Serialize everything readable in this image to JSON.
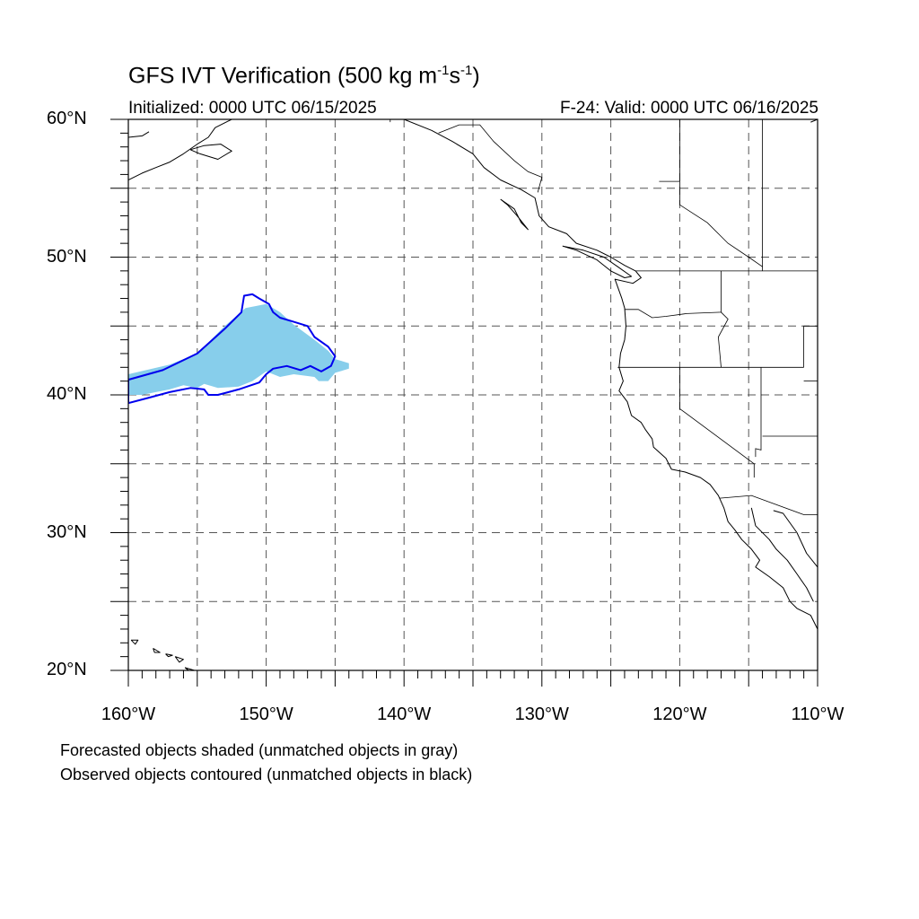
{
  "title_main": "GFS IVT Verification (500 kg m",
  "title_sup1": "-1",
  "title_mid": "s",
  "title_sup2": "-1",
  "title_end": ")",
  "initialized": "Initialized: 0000 UTC 06/15/2025",
  "valid": "F-24: Valid: 0000 UTC 06/16/2025",
  "map": {
    "lon_range": [
      -160,
      -110
    ],
    "lat_range": [
      20,
      60
    ],
    "grid_lon_step": 5,
    "grid_lat_step": 5,
    "lat_labels": [
      {
        "lat": 60,
        "text": "60°N"
      },
      {
        "lat": 50,
        "text": "50°N"
      },
      {
        "lat": 40,
        "text": "40°N"
      },
      {
        "lat": 30,
        "text": "30°N"
      },
      {
        "lat": 20,
        "text": "20°N"
      }
    ],
    "lon_labels": [
      {
        "lon": -160,
        "text": "160°W"
      },
      {
        "lon": -150,
        "text": "150°W"
      },
      {
        "lon": -140,
        "text": "140°W"
      },
      {
        "lon": -130,
        "text": "130°W"
      },
      {
        "lon": -120,
        "text": "120°W"
      },
      {
        "lon": -110,
        "text": "110°W"
      }
    ],
    "forecast_color": "#87ceeb",
    "observed_color": "#0000ee",
    "forecast_object": [
      [
        -160,
        41.5
      ],
      [
        -157,
        42.2
      ],
      [
        -155,
        43
      ],
      [
        -153,
        45
      ],
      [
        -151.5,
        46.3
      ],
      [
        -150,
        46.6
      ],
      [
        -149,
        46
      ],
      [
        -148,
        45.1
      ],
      [
        -146.5,
        44
      ],
      [
        -145.5,
        43.2
      ],
      [
        -145,
        42.6
      ],
      [
        -144,
        42.3
      ],
      [
        -144,
        41.9
      ],
      [
        -145,
        41.6
      ],
      [
        -145.5,
        41
      ],
      [
        -146.2,
        41
      ],
      [
        -146.5,
        41.3
      ],
      [
        -148,
        41.5
      ],
      [
        -149,
        41.3
      ],
      [
        -150,
        41.7
      ],
      [
        -151,
        41
      ],
      [
        -152,
        40.6
      ],
      [
        -153.5,
        40.5
      ],
      [
        -154.5,
        40.8
      ],
      [
        -155,
        40.5
      ],
      [
        -156,
        40.7
      ],
      [
        -157,
        40.4
      ],
      [
        -158,
        40.2
      ],
      [
        -159,
        40
      ],
      [
        -160,
        40
      ]
    ],
    "observed_object": [
      [
        -160,
        41.1
      ],
      [
        -157.5,
        41.8
      ],
      [
        -155,
        43
      ],
      [
        -153,
        44.8
      ],
      [
        -151.8,
        46
      ],
      [
        -151.6,
        47.2
      ],
      [
        -151,
        47.3
      ],
      [
        -150.5,
        47
      ],
      [
        -149.8,
        46.6
      ],
      [
        -149.5,
        46
      ],
      [
        -149,
        45.6
      ],
      [
        -148,
        45.3
      ],
      [
        -147,
        45
      ],
      [
        -146.5,
        44.2
      ],
      [
        -145.5,
        43.5
      ],
      [
        -145,
        42.8
      ],
      [
        -145.3,
        42.1
      ],
      [
        -146,
        41.7
      ],
      [
        -146.8,
        42.1
      ],
      [
        -147.5,
        41.8
      ],
      [
        -148.5,
        42.1
      ],
      [
        -149.5,
        41.9
      ],
      [
        -150,
        41.5
      ],
      [
        -150.5,
        40.9
      ],
      [
        -152,
        40.4
      ],
      [
        -153.5,
        40
      ],
      [
        -154.2,
        40
      ],
      [
        -154.5,
        40.4
      ],
      [
        -155.5,
        40.5
      ],
      [
        -157,
        40.2
      ],
      [
        -158.5,
        39.8
      ],
      [
        -160,
        39.4
      ]
    ],
    "coastlines": [
      [
        [
          -160,
          55.6
        ],
        [
          -159,
          56.1
        ],
        [
          -158,
          56.5
        ],
        [
          -157,
          56.9
        ],
        [
          -156,
          57.5
        ],
        [
          -155,
          58.2
        ],
        [
          -154.2,
          58.7
        ],
        [
          -153.7,
          59.4
        ],
        [
          -152.5,
          60
        ]
      ],
      [
        [
          -160,
          58.7
        ],
        [
          -159,
          58.8
        ],
        [
          -158.5,
          59.1
        ]
      ],
      [
        [
          -155.5,
          57.8
        ],
        [
          -154.8,
          57.5
        ],
        [
          -153.5,
          57.1
        ],
        [
          -152.5,
          57.7
        ],
        [
          -153.3,
          58.2
        ],
        [
          -154.5,
          58.1
        ],
        [
          -155.5,
          57.8
        ]
      ],
      [
        [
          -140,
          60
        ],
        [
          -138,
          59.2
        ],
        [
          -136.5,
          58.4
        ],
        [
          -135,
          57.5
        ],
        [
          -134.2,
          56.5
        ],
        [
          -133,
          55.6
        ],
        [
          -131.5,
          54.9
        ],
        [
          -130.5,
          54.3
        ],
        [
          -130.2,
          53
        ],
        [
          -129.5,
          52.2
        ],
        [
          -128.2,
          51.7
        ],
        [
          -127.5,
          51
        ],
        [
          -126,
          50.5
        ],
        [
          -125,
          50
        ],
        [
          -124,
          49.4
        ],
        [
          -123.2,
          49
        ],
        [
          -122.8,
          48.5
        ],
        [
          -123.4,
          48.1
        ],
        [
          -124.7,
          48.4
        ],
        [
          -124.2,
          47
        ],
        [
          -124,
          46.3
        ],
        [
          -123.9,
          45
        ],
        [
          -124,
          44
        ],
        [
          -124.3,
          43
        ],
        [
          -124.4,
          42
        ],
        [
          -124.1,
          41
        ],
        [
          -124.4,
          40.3
        ],
        [
          -123.8,
          39.5
        ],
        [
          -123.5,
          38.5
        ],
        [
          -122.8,
          38
        ],
        [
          -122.5,
          37.5
        ],
        [
          -122,
          36.8
        ],
        [
          -121.9,
          36.2
        ],
        [
          -121,
          35.4
        ],
        [
          -120.6,
          34.6
        ],
        [
          -119.6,
          34.4
        ],
        [
          -118.5,
          34
        ],
        [
          -117.8,
          33.5
        ],
        [
          -117.2,
          32.7
        ],
        [
          -116.8,
          31.8
        ],
        [
          -116.5,
          30.8
        ],
        [
          -116,
          30.2
        ],
        [
          -115.5,
          29.5
        ],
        [
          -114.8,
          28.8
        ],
        [
          -114.2,
          28
        ],
        [
          -114.5,
          27.5
        ],
        [
          -113.5,
          26.8
        ],
        [
          -112.5,
          26
        ],
        [
          -112,
          25
        ],
        [
          -111.5,
          24.5
        ],
        [
          -110.5,
          24
        ],
        [
          -110,
          23
        ]
      ],
      [
        [
          -114.8,
          31.8
        ],
        [
          -114.5,
          30.5
        ],
        [
          -113.5,
          29.5
        ],
        [
          -113,
          28.8
        ],
        [
          -112.2,
          28
        ],
        [
          -111.5,
          27
        ],
        [
          -110.8,
          26
        ],
        [
          -110.3,
          25
        ]
      ],
      [
        [
          -113.2,
          31.6
        ],
        [
          -112.5,
          31.4
        ],
        [
          -111.5,
          30
        ],
        [
          -110.8,
          28.5
        ],
        [
          -110,
          27.5
        ],
        [
          -110,
          27.1
        ]
      ],
      [
        [
          -133,
          54.2
        ],
        [
          -132,
          53.5
        ],
        [
          -131.5,
          52.5
        ],
        [
          -131,
          52
        ],
        [
          -131.8,
          53
        ],
        [
          -132.5,
          53.8
        ],
        [
          -133,
          54.2
        ]
      ],
      [
        [
          -128.5,
          50.8
        ],
        [
          -127.5,
          50.5
        ],
        [
          -126,
          49.8
        ],
        [
          -125,
          49
        ],
        [
          -124,
          48.5
        ],
        [
          -123.5,
          48.6
        ],
        [
          -124.5,
          49.3
        ],
        [
          -125.5,
          50
        ],
        [
          -127,
          50.5
        ],
        [
          -128.5,
          50.8
        ]
      ],
      [
        [
          -159.8,
          22.2
        ],
        [
          -159.3,
          22.2
        ],
        [
          -159.5,
          21.9
        ],
        [
          -159.8,
          22.2
        ]
      ],
      [
        [
          -158.2,
          21.6
        ],
        [
          -157.7,
          21.3
        ],
        [
          -158.1,
          21.3
        ],
        [
          -158.2,
          21.6
        ]
      ],
      [
        [
          -157.3,
          21.2
        ],
        [
          -156.8,
          21.1
        ],
        [
          -157.1,
          21
        ],
        [
          -157.3,
          21.2
        ]
      ],
      [
        [
          -156.6,
          21
        ],
        [
          -156,
          20.8
        ],
        [
          -156.3,
          20.6
        ],
        [
          -156.6,
          21
        ]
      ],
      [
        [
          -155.9,
          20.2
        ],
        [
          -155.2,
          20
        ],
        [
          -155.5,
          19.9
        ],
        [
          -155.9,
          20.2
        ]
      ],
      [
        [
          -110.5,
          59.8
        ],
        [
          -110,
          60
        ]
      ]
    ],
    "borders": [
      [
        [
          -123.2,
          49
        ],
        [
          -110,
          49
        ]
      ],
      [
        [
          -117,
          49
        ],
        [
          -117,
          46
        ],
        [
          -116.5,
          45.5
        ],
        [
          -117.2,
          44.2
        ],
        [
          -117,
          42
        ]
      ],
      [
        [
          -124.5,
          42
        ],
        [
          -111,
          42
        ]
      ],
      [
        [
          -124,
          46.2
        ],
        [
          -123,
          46.2
        ],
        [
          -122,
          45.6
        ],
        [
          -121,
          45.7
        ],
        [
          -119.5,
          45.9
        ],
        [
          -117,
          46
        ]
      ],
      [
        [
          -120,
          42
        ],
        [
          -120,
          39
        ],
        [
          -114.6,
          35
        ],
        [
          -114.6,
          34
        ]
      ],
      [
        [
          -114.1,
          42
        ],
        [
          -114.1,
          36
        ],
        [
          -114.5,
          36.1
        ],
        [
          -114.5,
          35.5
        ]
      ],
      [
        [
          -111,
          42
        ],
        [
          -111,
          45
        ],
        [
          -110,
          45
        ]
      ],
      [
        [
          -111,
          41
        ],
        [
          -110,
          41
        ]
      ],
      [
        [
          -114,
          37
        ],
        [
          -110,
          37
        ]
      ],
      [
        [
          -117.1,
          32.5
        ],
        [
          -114.8,
          32.7
        ],
        [
          -111,
          31.3
        ],
        [
          -110,
          31.3
        ]
      ],
      [
        [
          -114,
          60
        ],
        [
          -114,
          49
        ]
      ],
      [
        [
          -120,
          60
        ],
        [
          -120,
          53.8
        ],
        [
          -118,
          52.5
        ],
        [
          -116.5,
          51
        ],
        [
          -115,
          50
        ],
        [
          -114,
          49.3
        ]
      ],
      [
        [
          -141,
          60
        ],
        [
          -141,
          59.8
        ]
      ],
      [
        [
          -137.5,
          59
        ],
        [
          -136,
          59.6
        ],
        [
          -134.5,
          59.6
        ],
        [
          -133.5,
          58.4
        ],
        [
          -132,
          57
        ],
        [
          -131,
          56.2
        ],
        [
          -130,
          55.8
        ],
        [
          -130.3,
          54.7
        ]
      ],
      [
        [
          -110,
          57
        ],
        [
          -110,
          60
        ]
      ],
      [
        [
          -121.5,
          55.5
        ],
        [
          -120,
          55.5
        ]
      ]
    ]
  },
  "caption_line1": "Forecasted objects shaded (unmatched objects in gray)",
  "caption_line2": "Observed objects contoured (unmatched objects in black)"
}
